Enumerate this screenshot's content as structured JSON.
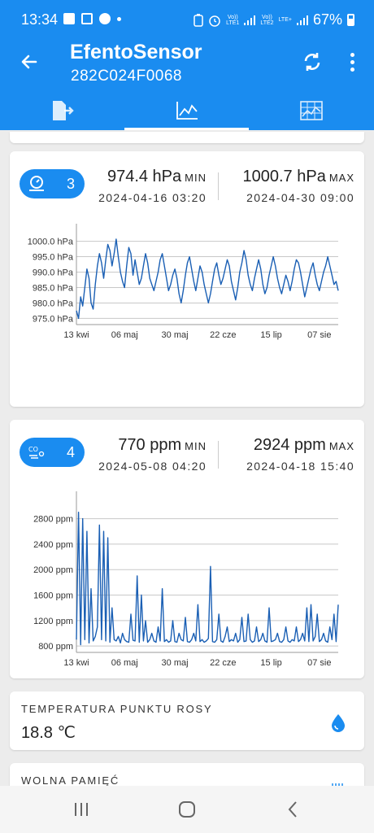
{
  "status_bar": {
    "time": "13:34",
    "network_1": "Vo))\nLTE1",
    "network_2": "Vo))\nLTE2",
    "network_2_type": "LTE+",
    "battery": "67%"
  },
  "app_bar": {
    "title": "EfentoSensor",
    "subtitle": "282C024F0068",
    "tabs": [
      {
        "icon": "export-document-icon",
        "selected": false
      },
      {
        "icon": "line-chart-icon",
        "selected": true
      },
      {
        "icon": "grid-chart-icon",
        "selected": false
      }
    ],
    "accent_color": "#1a8cf0"
  },
  "pressure_card": {
    "icon": "pressure-gauge-icon",
    "count": "3",
    "min_value": "974.4 hPa",
    "min_label": "MIN",
    "min_date": "2024-04-16 03:20",
    "max_value": "1000.7 hPa",
    "max_label": "MAX",
    "max_date": "2024-04-30 09:00"
  },
  "co2_card": {
    "icon": "co2-icon",
    "count": "4",
    "min_value": "770 ppm",
    "min_label": "MIN",
    "min_date": "2024-05-08 04:20",
    "max_value": "2924 ppm",
    "max_label": "MAX",
    "max_date": "2024-04-18 15:40"
  },
  "dew_point_card": {
    "title": "TEMPERATURA PUNKTU ROSY",
    "value": "18.8 ℃",
    "icon": "water-drop-icon"
  },
  "memory_card": {
    "title": "WOLNA PAMIĘĆ",
    "icon": "memory-chip-icon"
  },
  "chart_data": [
    {
      "type": "line",
      "title": "",
      "xlabel": "",
      "ylabel": "",
      "x_tick_labels": [
        "13 kwi",
        "06 maj",
        "30 maj",
        "22 cze",
        "15 lip",
        "07 sie"
      ],
      "y_tick_labels": [
        "1000.0 hPa",
        "995.0 hPa",
        "990.0 hPa",
        "985.0 hPa",
        "980.0 hPa",
        "975.0 hPa"
      ],
      "y_ticks": [
        1000,
        995,
        990,
        985,
        980,
        975
      ],
      "ylim": [
        973,
        1002
      ],
      "x_range_days": [
        0,
        125
      ],
      "x_tick_days": [
        0,
        23,
        47,
        70,
        93,
        116
      ],
      "grid": true,
      "series": [
        {
          "values": [
            977.5,
            975,
            982,
            979,
            985,
            991,
            988,
            980,
            978,
            986,
            992,
            996,
            993,
            988,
            994,
            999,
            997,
            992,
            996,
            1000.7,
            995,
            990,
            987,
            985,
            992,
            998,
            996,
            989,
            994,
            990,
            986,
            988,
            992,
            996,
            993,
            988,
            986,
            984,
            987,
            990,
            994,
            996,
            992,
            988,
            984,
            986,
            989,
            991,
            988,
            983,
            980,
            984,
            989,
            993,
            995,
            991,
            987,
            984,
            988,
            992,
            990,
            986,
            983,
            980,
            983,
            987,
            991,
            993,
            989,
            986,
            988,
            991,
            994,
            992,
            987,
            984,
            981,
            985,
            990,
            993,
            997,
            994,
            989,
            986,
            984,
            988,
            991,
            994,
            991,
            986,
            983,
            985,
            989,
            992,
            995,
            992,
            988,
            985,
            983,
            986,
            989,
            987,
            984,
            987,
            991,
            994,
            993,
            990,
            986,
            982,
            985,
            988,
            991,
            993,
            989,
            986,
            984,
            987,
            990,
            992,
            995,
            992,
            989,
            986,
            987,
            984
          ]
        }
      ],
      "line_color": "#1a5fb4"
    },
    {
      "type": "line",
      "title": "",
      "xlabel": "",
      "ylabel": "",
      "x_tick_labels": [
        "13 kwi",
        "06 maj",
        "30 maj",
        "22 cze",
        "15 lip",
        "07 sie"
      ],
      "y_tick_labels": [
        "2800 ppm",
        "2400 ppm",
        "2000 ppm",
        "1600 ppm",
        "1200 ppm",
        "800 ppm"
      ],
      "y_ticks": [
        2800,
        2400,
        2000,
        1600,
        1200,
        800
      ],
      "ylim": [
        700,
        3050
      ],
      "x_range_days": [
        0,
        125
      ],
      "x_tick_days": [
        0,
        23,
        47,
        70,
        93,
        116
      ],
      "grid": true,
      "series": [
        {
          "values": [
            900,
            2900,
            820,
            2800,
            900,
            2600,
            850,
            1700,
            880,
            950,
            1100,
            2700,
            900,
            2600,
            880,
            2500,
            860,
            1400,
            900,
            880,
            950,
            850,
            1000,
            900,
            870,
            860,
            1300,
            890,
            880,
            1900,
            860,
            1600,
            880,
            1200,
            860,
            900,
            1000,
            880,
            860,
            1100,
            880,
            1700,
            870,
            900,
            860,
            880,
            1200,
            870,
            860,
            1000,
            900,
            880,
            1250,
            870,
            860,
            900,
            1000,
            880,
            1450,
            870,
            900,
            860,
            880,
            920,
            2050,
            870,
            860,
            900,
            1300,
            880,
            860,
            950,
            1100,
            870,
            900,
            880,
            1000,
            860,
            900,
            1250,
            870,
            880,
            1300,
            900,
            860,
            880,
            1100,
            870,
            900,
            1000,
            880,
            860,
            1400,
            870,
            880,
            900,
            1000,
            870,
            860,
            900,
            1100,
            880,
            860,
            900,
            880,
            1100,
            870,
            900,
            1000,
            880,
            1400,
            870,
            1450,
            880,
            950,
            1300,
            870,
            900,
            1000,
            880,
            860,
            1100,
            900,
            1300,
            870,
            1450
          ]
        }
      ],
      "line_color": "#1a5fb4"
    }
  ]
}
